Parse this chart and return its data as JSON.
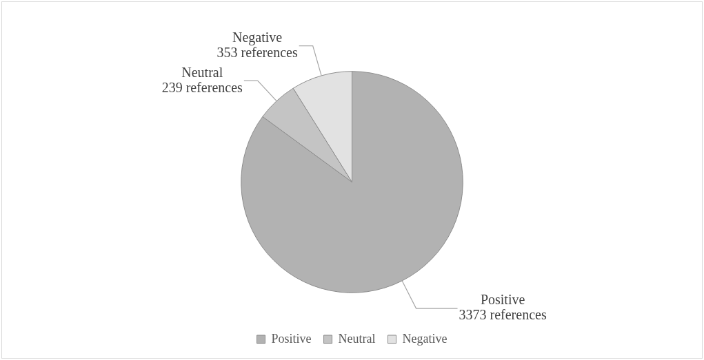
{
  "chart_data": {
    "type": "pie",
    "categories": [
      "Positive",
      "Neutral",
      "Negative"
    ],
    "values": [
      3373,
      239,
      353
    ],
    "colors": [
      "#b2b2b2",
      "#c4c4c4",
      "#e2e2e2"
    ],
    "value_labels": [
      "3373 references",
      "239 references",
      "353 references"
    ],
    "legend": "bottom"
  }
}
